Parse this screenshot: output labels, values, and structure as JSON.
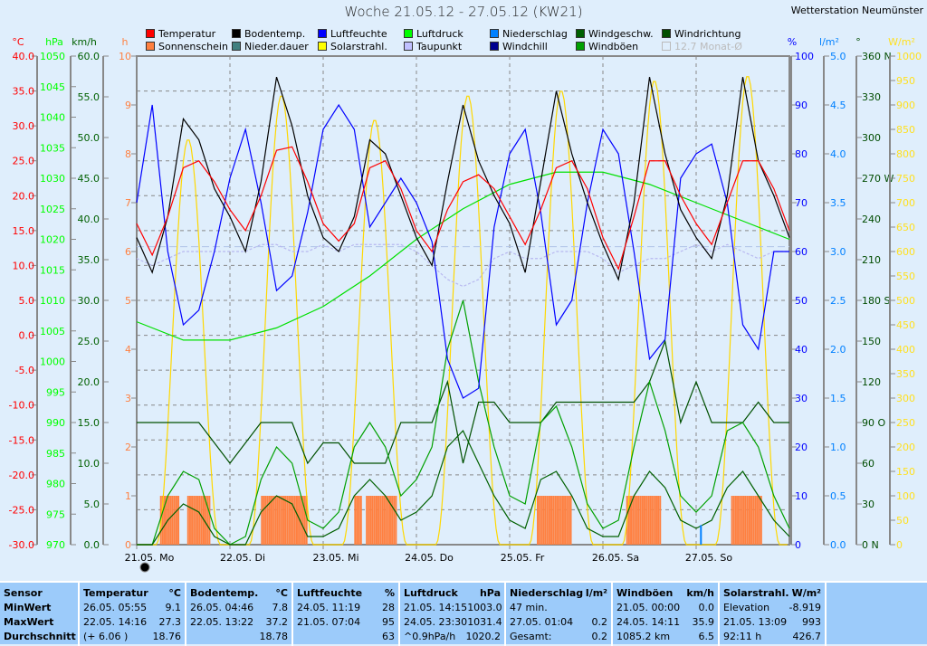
{
  "header": {
    "title": "Woche 21.05.12 - 27.05.12 (KW21)",
    "station": "Wetterstation Neumünster"
  },
  "legend": [
    {
      "label": "Temperatur",
      "color": "#ff0000"
    },
    {
      "label": "Bodentemp.",
      "color": "#000000"
    },
    {
      "label": "Luftfeuchte",
      "color": "#0000ff"
    },
    {
      "label": "Luftdruck",
      "color": "#00ff00"
    },
    {
      "label": "Niederschlag",
      "color": "#0080ff"
    },
    {
      "label": "Windgeschw.",
      "color": "#006000"
    },
    {
      "label": "Windrichtung",
      "color": "#005000"
    },
    {
      "label": "Sonnenschein",
      "color": "#ff8040"
    },
    {
      "label": "Nieder.dauer",
      "color": "#408080"
    },
    {
      "label": "Solarstrahl.",
      "color": "#ffff00"
    },
    {
      "label": "Taupunkt",
      "color": "#c0c0ff"
    },
    {
      "label": "Windchill",
      "color": "#000090"
    },
    {
      "label": "Windböen",
      "color": "#00a000"
    },
    {
      "label": "12.7 Monat-Ø",
      "color": "#dfeefc"
    }
  ],
  "colors": {
    "temp": "#ff0000",
    "hpa": "#00ff00",
    "kmh": "#006000",
    "h": "#ff8040",
    "pct": "#0000ff",
    "lm2": "#0080ff",
    "deg": "#004c00",
    "wm2": "#ffe020"
  },
  "chart_data": {
    "type": "line",
    "title": "Woche 21.05.12 - 27.05.12 (KW21)",
    "axes": {
      "temp": {
        "unit": "°C",
        "range": [
          -30,
          40
        ],
        "step": 5
      },
      "pressure": {
        "unit": "hPa",
        "range": [
          970,
          1050
        ],
        "step": 5
      },
      "wind": {
        "unit": "km/h",
        "range": [
          0,
          60
        ],
        "step": 5
      },
      "sunshine": {
        "unit": "h",
        "range": [
          0,
          10
        ],
        "step": 1
      },
      "humidity": {
        "unit": "%",
        "range": [
          0,
          100
        ],
        "step": 10
      },
      "rain": {
        "unit": "l/m²",
        "range": [
          0,
          5
        ],
        "step": 0.5
      },
      "direction": {
        "unit": "°",
        "range": [
          0,
          360
        ],
        "step": 30,
        "compass": {
          "0": "N",
          "90": "O",
          "180": "S",
          "270": "W",
          "360": "N"
        }
      },
      "solar": {
        "unit": "W/m²",
        "range": [
          0,
          1000
        ],
        "step": 50
      }
    },
    "x_labels": [
      "21.05.  Mo",
      "22.05.  Di",
      "23.05.  Mi",
      "24.05.  Do",
      "25.05.  Fr",
      "26.05.  Sa",
      "27.05.  So"
    ],
    "hours_total": 168,
    "month_avg_temp": 12.7,
    "series": {
      "temperature": {
        "interval_h": 4,
        "values": [
          16,
          11.5,
          17,
          24,
          25,
          22,
          18,
          15,
          20,
          26.5,
          27,
          22,
          16,
          13.5,
          16,
          24,
          25,
          21,
          15,
          12,
          18,
          22,
          23,
          21,
          17,
          13,
          18,
          24,
          25,
          21,
          14,
          9.5,
          17,
          25,
          25,
          20,
          16,
          13,
          19,
          25,
          25,
          21,
          15
        ]
      },
      "soil_temp": {
        "interval_h": 4,
        "values": [
          14,
          9,
          17,
          31,
          28,
          21,
          17,
          12,
          22,
          37,
          30,
          20,
          14,
          12,
          17,
          28,
          26,
          20,
          14,
          10,
          22,
          33,
          25,
          20,
          16,
          9,
          22,
          35,
          26,
          19,
          13,
          8,
          19,
          37,
          26,
          18,
          14,
          11,
          20,
          37,
          25,
          20,
          14
        ]
      },
      "humidity": {
        "interval_h": 4,
        "values": [
          70,
          90,
          60,
          45,
          48,
          60,
          75,
          85,
          70,
          52,
          55,
          68,
          85,
          90,
          85,
          65,
          70,
          75,
          70,
          62,
          38,
          30,
          32,
          65,
          80,
          85,
          68,
          45,
          50,
          70,
          85,
          80,
          60,
          38,
          42,
          75,
          80,
          82,
          70,
          45,
          40,
          60,
          60
        ]
      },
      "dewpoint": {
        "interval_h": 4,
        "values": [
          11,
          10,
          11,
          12,
          12,
          12,
          12,
          12,
          13,
          13,
          12,
          12,
          13,
          12,
          13,
          13,
          13,
          13,
          12,
          10,
          8,
          7,
          8,
          11,
          12,
          11,
          11,
          12,
          12,
          12,
          11,
          9,
          10,
          11,
          11,
          12,
          13,
          12,
          13,
          12,
          11,
          12,
          12
        ]
      },
      "pressure": {
        "interval_h": 12,
        "values": [
          1006.5,
          1003.5,
          1003.5,
          1005.5,
          1009,
          1014,
          1020,
          1025,
          1029,
          1031,
          1031,
          1029,
          1026,
          1023,
          1020
        ]
      },
      "wind_speed": {
        "interval_h": 4,
        "values": [
          0,
          0,
          3,
          5,
          4,
          1,
          0,
          0,
          4,
          6,
          5,
          1,
          1,
          2,
          6,
          8,
          6,
          3,
          4,
          6,
          12,
          14,
          10,
          6,
          3,
          2,
          8,
          9,
          6,
          2,
          1,
          1,
          6,
          9,
          7,
          3,
          2,
          3,
          7,
          9,
          6,
          3,
          1
        ]
      },
      "wind_gust": {
        "interval_h": 4,
        "values": [
          0,
          0,
          6,
          9,
          8,
          2,
          0,
          1,
          8,
          12,
          10,
          3,
          2,
          4,
          12,
          15,
          12,
          6,
          8,
          12,
          24,
          30,
          20,
          12,
          6,
          5,
          15,
          17,
          12,
          5,
          2,
          3,
          12,
          20,
          14,
          6,
          4,
          6,
          14,
          15,
          12,
          6,
          2
        ]
      },
      "wind_direction": {
        "interval_h": 4,
        "values": [
          90,
          90,
          90,
          90,
          90,
          75,
          60,
          75,
          90,
          90,
          90,
          60,
          75,
          75,
          60,
          60,
          60,
          90,
          90,
          90,
          120,
          60,
          105,
          105,
          90,
          90,
          90,
          105,
          105,
          105,
          105,
          105,
          105,
          120,
          150,
          90,
          120,
          90,
          90,
          90,
          105,
          90,
          90
        ]
      },
      "solar_daily_peak": [
        830,
        920,
        870,
        920,
        930,
        950,
        960
      ],
      "sunshine_windows_h": [
        [
          [
            6,
            11
          ],
          [
            13,
            19
          ]
        ],
        [
          [
            8,
            20
          ]
        ],
        [
          [
            8,
            10
          ],
          [
            11,
            19
          ]
        ],
        [],
        [
          [
            7,
            16
          ]
        ],
        [
          [
            6,
            15
          ]
        ],
        [
          [
            9,
            17
          ]
        ]
      ],
      "rain_events": [
        {
          "hour": 145,
          "value": 0.2
        }
      ]
    }
  },
  "table": {
    "sensor": {
      "head": "Sensor",
      "rows": [
        "MinWert",
        "MaxWert",
        "Durchschnitt"
      ]
    },
    "cols": [
      {
        "name": "Temperatur",
        "unit": "°C",
        "rows": [
          [
            "26.05.  05:55",
            "9.1"
          ],
          [
            "22.05.  14:16",
            "27.3"
          ],
          [
            "(+ 6.06 )",
            "18.76"
          ]
        ]
      },
      {
        "name": "Bodentemp.",
        "unit": "°C",
        "rows": [
          [
            "26.05.  04:46",
            "7.8"
          ],
          [
            "22.05.  13:22",
            "37.2"
          ],
          [
            "",
            "18.78"
          ]
        ]
      },
      {
        "name": "Luftfeuchte",
        "unit": "%",
        "rows": [
          [
            "24.05.  11:19",
            "28"
          ],
          [
            "21.05.  07:04",
            "95"
          ],
          [
            "",
            "63"
          ]
        ]
      },
      {
        "name": "Luftdruck",
        "unit": "hPa",
        "rows": [
          [
            "21.05.  14:15",
            "1003.0"
          ],
          [
            "24.05.  23:30",
            "1031.4"
          ],
          [
            "^0.9hPa/h",
            "1020.2"
          ]
        ]
      },
      {
        "name": "Niederschlag",
        "unit": "l/m²",
        "rows": [
          [
            "47 min.",
            ""
          ],
          [
            "27.05.  01:04",
            "0.2"
          ],
          [
            "Gesamt:",
            "0.2"
          ]
        ]
      },
      {
        "name": "Windböen",
        "unit": "km/h",
        "rows": [
          [
            "21.05.  00:00",
            "0.0"
          ],
          [
            "24.05.  14:11",
            "35.9"
          ],
          [
            "1085.2 km",
            "6.5"
          ]
        ]
      },
      {
        "name": "Solarstrahl.",
        "unit": "W/m²",
        "rows": [
          [
            "Elevation",
            "-8.919"
          ],
          [
            "21.05.  13:09",
            "993"
          ],
          [
            "92:11 h",
            "426.7"
          ]
        ]
      }
    ]
  }
}
